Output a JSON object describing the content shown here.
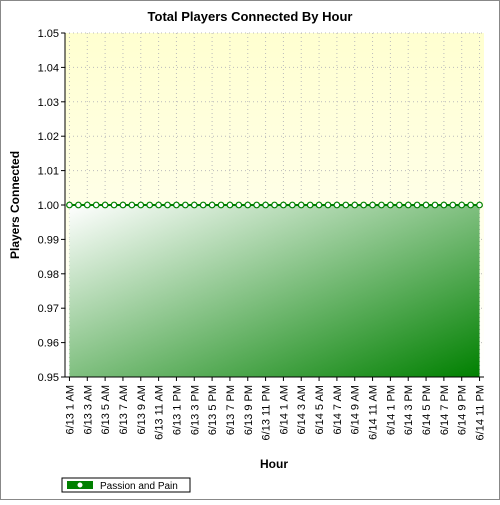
{
  "chart_data": {
    "type": "area",
    "title": "Total Players Connected By Hour",
    "x_label": "Hour",
    "y_label": "Players Connected",
    "categories": [
      "6/13 1 AM",
      null,
      "6/13 3 AM",
      null,
      "6/13 5 AM",
      null,
      "6/13 7 AM",
      null,
      "6/13 9 AM",
      null,
      "6/13 11 AM",
      null,
      "6/13 1 PM",
      null,
      "6/13 3 PM",
      null,
      "6/13 5 PM",
      null,
      "6/13 7 PM",
      null,
      "6/13 9 PM",
      null,
      "6/13 11 PM",
      null,
      "6/14 1 AM",
      null,
      "6/14 3 AM",
      null,
      "6/14 5 AM",
      null,
      "6/14 7 AM",
      null,
      "6/14 9 AM",
      null,
      "6/14 11 AM",
      null,
      "6/14 1 PM",
      null,
      "6/14 3 PM",
      null,
      "6/14 5 PM",
      null,
      "6/14 7 PM",
      null,
      "6/14 9 PM",
      null,
      "6/14 11 PM"
    ],
    "series": [
      {
        "name": "Passion and Pain",
        "color": "#008000",
        "values": [
          1,
          1,
          1,
          1,
          1,
          1,
          1,
          1,
          1,
          1,
          1,
          1,
          1,
          1,
          1,
          1,
          1,
          1,
          1,
          1,
          1,
          1,
          1,
          1,
          1,
          1,
          1,
          1,
          1,
          1,
          1,
          1,
          1,
          1,
          1,
          1,
          1,
          1,
          1,
          1,
          1,
          1,
          1,
          1,
          1,
          1,
          1
        ]
      }
    ],
    "ylim": [
      0.95,
      1.05
    ],
    "yticks": [
      0.95,
      0.96,
      0.97,
      0.98,
      0.99,
      {
        "value": 1,
        "label": "1.00"
      },
      1.01,
      1.02,
      1.03,
      1.04,
      1.05
    ],
    "grid": true,
    "legend": "bottom-left"
  }
}
